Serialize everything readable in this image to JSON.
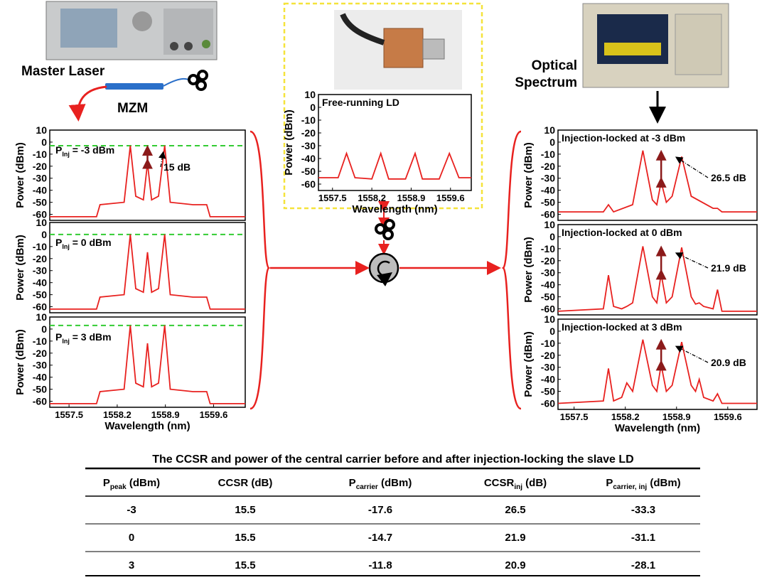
{
  "chart_data": [
    {
      "type": "line",
      "label": {
        "text": "P",
        "sub": "Inj",
        "rest": " = -3 dBm"
      },
      "annotation": "15 dB",
      "hline": -3,
      "hline_color": "#33cc33",
      "x": [
        1557.22,
        1557.9,
        1557.95,
        1558.3,
        1558.39,
        1558.47,
        1558.58,
        1558.64,
        1558.7,
        1558.8,
        1558.89,
        1558.97,
        1559.3,
        1559.5,
        1559.55,
        1560.06
      ],
      "series": [
        {
          "color": "#e8211f",
          "values": [
            -62,
            -62,
            -52,
            -50,
            -3,
            -45,
            -48,
            -17.6,
            -48,
            -45,
            -3,
            -50,
            -52,
            -52,
            -62,
            -62
          ]
        }
      ],
      "xlim": [
        1557.22,
        1560.06
      ],
      "ylim": [
        -65,
        10
      ],
      "yticks": [
        10,
        0,
        -10,
        -20,
        -30,
        -40,
        -50,
        -60
      ],
      "y_label": "Power (dBm)"
    },
    {
      "type": "line",
      "label": {
        "text": "P",
        "sub": "Inj",
        "rest": " = 0 dBm"
      },
      "hline": 0,
      "hline_color": "#33cc33",
      "x": [
        1557.22,
        1557.9,
        1557.95,
        1558.3,
        1558.39,
        1558.47,
        1558.58,
        1558.64,
        1558.7,
        1558.8,
        1558.89,
        1558.97,
        1559.3,
        1559.5,
        1559.55,
        1560.06
      ],
      "series": [
        {
          "color": "#e8211f",
          "values": [
            -62,
            -62,
            -52,
            -50,
            0,
            -45,
            -48,
            -14.7,
            -48,
            -45,
            0,
            -50,
            -52,
            -52,
            -62,
            -62
          ]
        }
      ],
      "xlim": [
        1557.22,
        1560.06
      ],
      "ylim": [
        -65,
        10
      ],
      "yticks": [
        10,
        0,
        -10,
        -20,
        -30,
        -40,
        -50,
        -60
      ],
      "y_label": "Power (dBm)"
    },
    {
      "type": "line",
      "label": {
        "text": "P",
        "sub": "Inj",
        "rest": " = 3 dBm"
      },
      "hline": 3,
      "hline_color": "#33cc33",
      "x": [
        1557.22,
        1557.9,
        1557.95,
        1558.3,
        1558.39,
        1558.47,
        1558.58,
        1558.64,
        1558.7,
        1558.8,
        1558.89,
        1558.97,
        1559.3,
        1559.5,
        1559.55,
        1560.06
      ],
      "series": [
        {
          "color": "#e8211f",
          "values": [
            -62,
            -62,
            -52,
            -50,
            3,
            -45,
            -48,
            -11.8,
            -48,
            -45,
            3,
            -50,
            -52,
            -52,
            -62,
            -62
          ]
        }
      ],
      "xlim": [
        1557.22,
        1560.06
      ],
      "ylim": [
        -65,
        10
      ],
      "yticks": [
        10,
        0,
        -10,
        -20,
        -30,
        -40,
        -50,
        -60
      ],
      "xticks": [
        1557.5,
        1558.2,
        1558.9,
        1559.6
      ],
      "y_label": "Power (dBm)",
      "x_label": "Wavelength (nm)"
    },
    {
      "type": "line",
      "title": "Free-running LD",
      "x": [
        1557.25,
        1557.6,
        1557.75,
        1557.9,
        1558.2,
        1558.36,
        1558.5,
        1558.8,
        1558.97,
        1559.1,
        1559.4,
        1559.58,
        1559.75,
        1559.97
      ],
      "series": [
        {
          "color": "#e8211f",
          "values": [
            -55,
            -55,
            -36,
            -55,
            -56,
            -36,
            -56,
            -56,
            -36,
            -56,
            -56,
            -36,
            -55,
            -55
          ]
        }
      ],
      "xlim": [
        1557.25,
        1559.97
      ],
      "ylim": [
        -65,
        10
      ],
      "yticks": [
        10,
        0,
        -10,
        -20,
        -30,
        -40,
        -50,
        -60
      ],
      "xticks": [
        1557.5,
        1558.2,
        1558.9,
        1559.6
      ],
      "y_label": "Power (dBm)",
      "x_label": "Wavelength (nm)"
    },
    {
      "type": "line",
      "title": "Injection-locked at -3 dBm",
      "annotation": "26.5 dB",
      "x": [
        1557.28,
        1557.9,
        1557.97,
        1558.04,
        1558.3,
        1558.44,
        1558.57,
        1558.63,
        1558.69,
        1558.76,
        1558.84,
        1558.97,
        1559.1,
        1559.4,
        1559.46,
        1559.52,
        1560.0
      ],
      "series": [
        {
          "color": "#e8211f",
          "values": [
            -58,
            -58,
            -52,
            -58,
            -52,
            -7,
            -48,
            -52,
            -33,
            -50,
            -45,
            -12,
            -45,
            -55,
            -55,
            -58,
            -58
          ]
        }
      ],
      "xlim": [
        1557.28,
        1560.0
      ],
      "ylim": [
        -65,
        10
      ],
      "yticks": [
        10,
        0,
        -10,
        -20,
        -30,
        -40,
        -50,
        -60
      ],
      "y_label": "Power (dBm)"
    },
    {
      "type": "line",
      "title": "Injection-locked at 0 dBm",
      "annotation": "21.9 dB",
      "x": [
        1557.28,
        1557.9,
        1557.97,
        1558.04,
        1558.15,
        1558.22,
        1558.3,
        1558.44,
        1558.57,
        1558.63,
        1558.69,
        1558.76,
        1558.84,
        1558.97,
        1559.1,
        1559.16,
        1559.21,
        1559.27,
        1559.4,
        1559.46,
        1559.52,
        1560.0
      ],
      "series": [
        {
          "color": "#e8211f",
          "values": [
            -62,
            -60,
            -32,
            -58,
            -60,
            -58,
            -55,
            -8,
            -50,
            -55,
            -31,
            -55,
            -50,
            -9,
            -50,
            -56,
            -55,
            -58,
            -60,
            -44,
            -62,
            -62
          ]
        }
      ],
      "xlim": [
        1557.28,
        1560.0
      ],
      "ylim": [
        -65,
        10
      ],
      "yticks": [
        10,
        0,
        -10,
        -20,
        -30,
        -40,
        -50,
        -60
      ],
      "y_label": "Power (dBm)"
    },
    {
      "type": "line",
      "title": "Injection-locked at 3 dBm",
      "annotation": "20.9 dB",
      "x": [
        1557.28,
        1557.9,
        1557.97,
        1558.04,
        1558.15,
        1558.22,
        1558.3,
        1558.44,
        1558.57,
        1558.63,
        1558.69,
        1558.76,
        1558.84,
        1558.97,
        1559.1,
        1559.16,
        1559.21,
        1559.27,
        1559.4,
        1559.46,
        1559.52,
        1560.0
      ],
      "series": [
        {
          "color": "#e8211f",
          "values": [
            -60,
            -58,
            -31,
            -58,
            -55,
            -43,
            -50,
            -7,
            -45,
            -50,
            -28,
            -50,
            -45,
            -9,
            -45,
            -50,
            -40,
            -55,
            -58,
            -52,
            -60,
            -60
          ]
        }
      ],
      "xlim": [
        1557.28,
        1560.0
      ],
      "ylim": [
        -65,
        10
      ],
      "yticks": [
        10,
        0,
        -10,
        -20,
        -30,
        -40,
        -50,
        -60
      ],
      "xticks": [
        1557.5,
        1558.2,
        1558.9,
        1559.6
      ],
      "y_label": "Power (dBm)",
      "x_label": "Wavelength (nm)"
    }
  ],
  "labels": {
    "master_laser": "Master Laser",
    "mzm": "MZM",
    "optical_spectrum": [
      "Optical",
      "Spectrum"
    ]
  },
  "table": {
    "title": "The CCSR and power of the central carrier before and after injection-locking the slave LD",
    "header": [
      [
        "P",
        "peak",
        " (dBm)"
      ],
      [
        "CCSR (dB)"
      ],
      [
        "P",
        "carrier",
        " (dBm)"
      ],
      [
        "CCSR",
        "inj",
        " (dB)"
      ],
      [
        "P",
        "carrier, inj",
        " (dBm)"
      ]
    ],
    "rows": [
      [
        "-3",
        "15.5",
        "-17.6",
        "26.5",
        "-33.3"
      ],
      [
        "0",
        "15.5",
        "-14.7",
        "21.9",
        "-31.1"
      ],
      [
        "3",
        "15.5",
        "-11.8",
        "20.9",
        "-28.1"
      ]
    ]
  }
}
